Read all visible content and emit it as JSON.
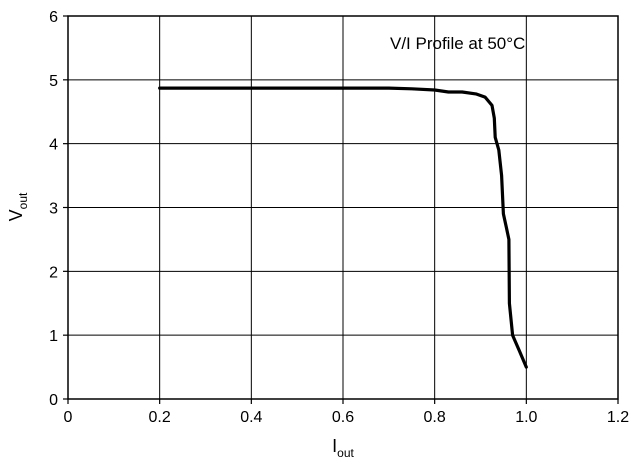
{
  "chart_data": {
    "type": "line",
    "title": "",
    "annotation": "V/I Profile at 50°C",
    "xlabel": {
      "main": "I",
      "sub": "out"
    },
    "ylabel": {
      "main": "V",
      "sub": "out"
    },
    "xlim": [
      0,
      1.2
    ],
    "ylim": [
      0,
      6
    ],
    "xticks": [
      0,
      0.2,
      0.4,
      0.6,
      0.8,
      1.0,
      1.2
    ],
    "xtick_labels": [
      "0",
      "0.2",
      "0.4",
      "0.6",
      "0.8",
      "1.0",
      "1.2"
    ],
    "yticks": [
      0,
      1,
      2,
      3,
      4,
      5,
      6
    ],
    "ytick_labels": [
      "0",
      "1",
      "2",
      "3",
      "4",
      "5",
      "6"
    ],
    "grid": true,
    "series": [
      {
        "color": "#000000",
        "points": [
          [
            0.2,
            4.87
          ],
          [
            0.7,
            4.87
          ],
          [
            0.75,
            4.86
          ],
          [
            0.8,
            4.84
          ],
          [
            0.83,
            4.81
          ],
          [
            0.86,
            4.81
          ],
          [
            0.89,
            4.78
          ],
          [
            0.91,
            4.73
          ],
          [
            0.925,
            4.6
          ],
          [
            0.93,
            4.4
          ],
          [
            0.932,
            4.1
          ],
          [
            0.94,
            3.9
          ],
          [
            0.946,
            3.5
          ],
          [
            0.95,
            2.9
          ],
          [
            0.956,
            2.7
          ],
          [
            0.962,
            2.5
          ],
          [
            0.963,
            1.5
          ],
          [
            0.97,
            1.0
          ],
          [
            0.985,
            0.75
          ],
          [
            1.0,
            0.5
          ]
        ]
      }
    ]
  }
}
